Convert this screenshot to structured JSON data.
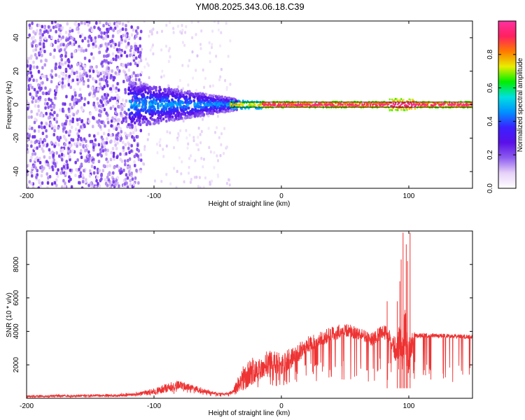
{
  "figure_title": "YM08.2025.343.06.18.C39",
  "colors": {
    "line": "#ee3333",
    "background": "#ffffff",
    "axes": "#000000",
    "colormap": [
      "#ffffff",
      "#e7d2f8",
      "#8e5cf0",
      "#5a10e8",
      "#3a20ff",
      "#0090ff",
      "#00e0e0",
      "#00ee00",
      "#e8ee00",
      "#ff7a00",
      "#ff2060",
      "#ff30a0"
    ]
  },
  "chart_data": [
    {
      "id": "spectrogram",
      "type": "heatmap",
      "title": "YM08.2025.343.06.18.C39",
      "xlabel": "Height of straight line (km)",
      "ylabel": "Frequency (Hz)",
      "xlim": [
        -200,
        150
      ],
      "ylim": [
        -50,
        50
      ],
      "x_ticks": [
        -200,
        -100,
        0,
        100
      ],
      "x_tick_labels": [
        "-200",
        "-100",
        "0",
        "100"
      ],
      "y_ticks": [
        -40,
        -20,
        0,
        20,
        40
      ],
      "y_tick_labels": [
        "-40",
        "-20",
        "0",
        "20",
        "40"
      ],
      "colorbar": {
        "label": "Normalized spectral amplitude",
        "range": [
          0,
          1
        ],
        "ticks": [
          0.0,
          0.2,
          0.4,
          0.6,
          0.8
        ],
        "tick_labels": [
          "0.0",
          "0.2",
          "0.4",
          "0.6",
          "0.8"
        ]
      },
      "description_bands": [
        {
          "x_range": [
            -200,
            -110
          ],
          "freq_spread": 50,
          "amplitude": 0.15
        },
        {
          "x_range": [
            -110,
            -40
          ],
          "freq_spread": 12,
          "amplitude": 0.35
        },
        {
          "x_range": [
            -40,
            150
          ],
          "freq_spread": 1.5,
          "amplitude": 0.95
        }
      ]
    },
    {
      "id": "snr",
      "type": "line",
      "xlabel": "Height of straight line (km)",
      "ylabel": "SNR (10 * v/v)",
      "xlim": [
        -200,
        150
      ],
      "ylim": [
        0,
        10000
      ],
      "x_ticks": [
        -200,
        -100,
        0,
        100
      ],
      "x_tick_labels": [
        "-200",
        "-100",
        "0",
        "100"
      ],
      "y_ticks": [
        2000,
        4000,
        6000,
        8000
      ],
      "y_tick_labels": [
        "2000",
        "4000",
        "6000",
        "8000"
      ],
      "series": [
        {
          "name": "SNR",
          "envelope_x": [
            -200,
            -130,
            -115,
            -100,
            -90,
            -80,
            -70,
            -60,
            -55,
            -45,
            -38,
            -32,
            -28,
            -20,
            -10,
            0,
            10,
            20,
            30,
            40,
            50,
            60,
            65,
            70,
            75,
            80,
            85,
            90,
            93,
            95,
            97,
            99,
            101,
            103,
            105,
            115,
            130,
            150
          ],
          "envelope_y": [
            200,
            250,
            350,
            600,
            900,
            1100,
            800,
            600,
            450,
            300,
            500,
            1800,
            2300,
            2500,
            2900,
            2700,
            3200,
            3700,
            4000,
            4300,
            4500,
            4300,
            4100,
            3900,
            4200,
            4500,
            4100,
            3600,
            5000,
            3800,
            5500,
            4800,
            3500,
            4200,
            3900,
            3900,
            3850,
            3800
          ],
          "noise_y": [
            150,
            150,
            200,
            350,
            550,
            550,
            350,
            300,
            200,
            100,
            250,
            1400,
            1800,
            1500,
            1500,
            1300,
            1300,
            1000,
            900,
            900,
            800,
            800,
            800,
            800,
            900,
            900,
            900,
            1500,
            2500,
            2500,
            3000,
            3000,
            2500,
            1500,
            300,
            250,
            250,
            250
          ],
          "spikes": [
            {
              "x": 83,
              "y": 5800
            },
            {
              "x": 91,
              "y": 5800
            },
            {
              "x": 93,
              "y": 7000
            },
            {
              "x": 94,
              "y": 8300
            },
            {
              "x": 95.5,
              "y": 9900
            },
            {
              "x": 96.5,
              "y": 4700
            },
            {
              "x": 98,
              "y": 9200
            },
            {
              "x": 99,
              "y": 8200
            },
            {
              "x": 101,
              "y": 9900
            }
          ]
        }
      ]
    }
  ]
}
